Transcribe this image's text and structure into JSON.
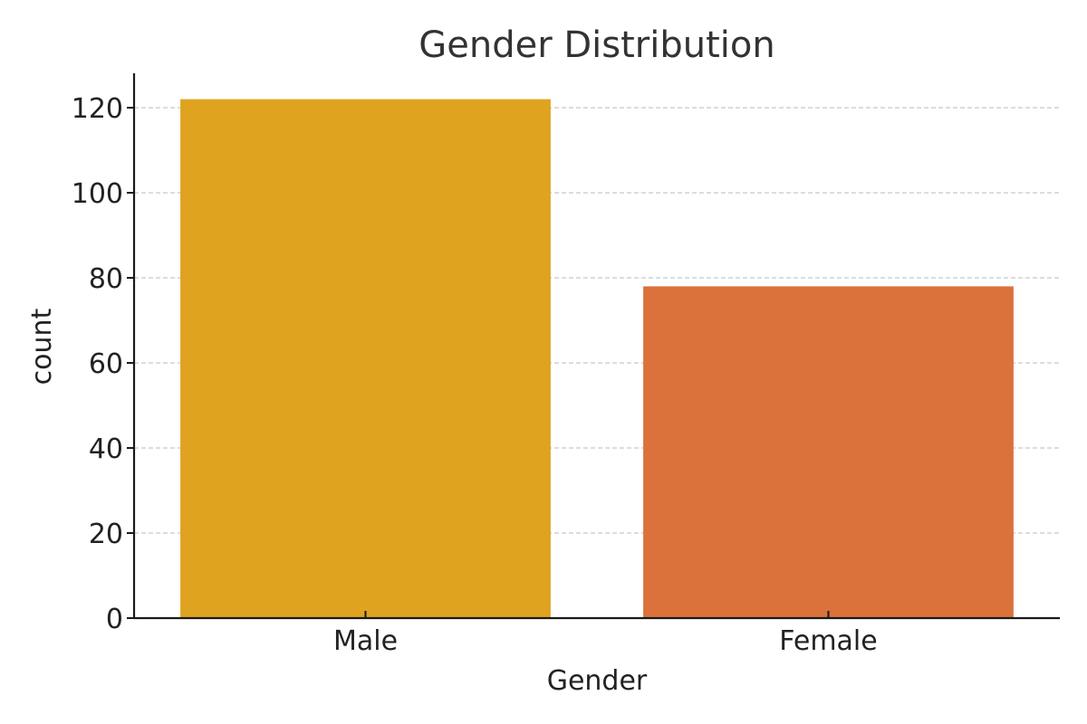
{
  "chart_data": {
    "type": "bar",
    "title": "Gender Distribution",
    "xlabel": "Gender",
    "ylabel": "count",
    "categories": [
      "Male",
      "Female"
    ],
    "values": [
      122,
      78
    ],
    "colors": [
      "#DFA320",
      "#DB723C"
    ],
    "ylim": [
      0,
      128
    ],
    "yticks": [
      0,
      20,
      40,
      60,
      80,
      100,
      120
    ],
    "ytick_labels": [
      "0",
      "20",
      "40",
      "60",
      "80",
      "100",
      "120"
    ],
    "grid": "y-dashed",
    "legend": "none"
  }
}
